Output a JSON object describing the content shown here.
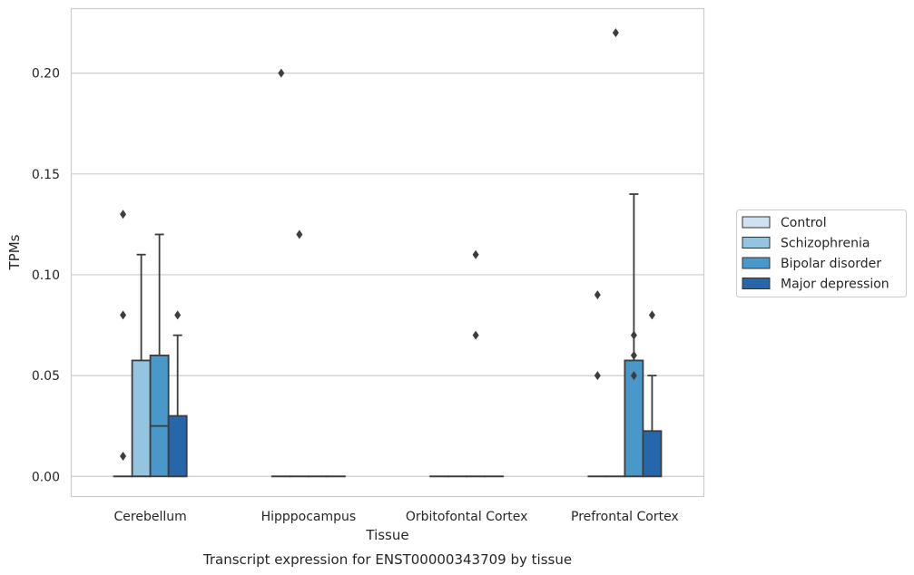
{
  "chart_data": {
    "type": "box",
    "title": "",
    "caption": "Transcript expression for ENST00000343709 by tissue",
    "xlabel": "Tissue",
    "ylabel": "TPMs",
    "ylim": [
      -0.01,
      0.232
    ],
    "yticks": [
      "0.00",
      "0.05",
      "0.10",
      "0.15",
      "0.20"
    ],
    "ytick_values": [
      0,
      0.05,
      0.1,
      0.15,
      0.2
    ],
    "grid": true,
    "legend_position": "right",
    "categories": [
      "Cerebellum",
      "Hipppocampus",
      "Orbitofontal Cortex",
      "Prefrontal Cortex"
    ],
    "series": [
      {
        "name": "Control",
        "color": "#d0e1f2",
        "boxes": [
          {
            "q1": 0,
            "median": 0,
            "q3": 0,
            "whisker_low": 0,
            "whisker_high": 0,
            "outliers": [
              0.01,
              0.08,
              0.13
            ]
          },
          {
            "q1": 0,
            "median": 0,
            "q3": 0,
            "whisker_low": 0,
            "whisker_high": 0,
            "outliers": [
              0.2
            ]
          },
          {
            "q1": 0,
            "median": 0,
            "q3": 0,
            "whisker_low": 0,
            "whisker_high": 0,
            "outliers": []
          },
          {
            "q1": 0,
            "median": 0,
            "q3": 0,
            "whisker_low": 0,
            "whisker_high": 0,
            "outliers": [
              0.05,
              0.09
            ]
          }
        ]
      },
      {
        "name": "Schizophrenia",
        "color": "#94c4df",
        "boxes": [
          {
            "q1": 0,
            "median": 0,
            "q3": 0.0575,
            "whisker_low": 0,
            "whisker_high": 0.11,
            "outliers": []
          },
          {
            "q1": 0,
            "median": 0,
            "q3": 0,
            "whisker_low": 0,
            "whisker_high": 0,
            "outliers": [
              0.12
            ]
          },
          {
            "q1": 0,
            "median": 0,
            "q3": 0,
            "whisker_low": 0,
            "whisker_high": 0,
            "outliers": []
          },
          {
            "q1": 0,
            "median": 0,
            "q3": 0,
            "whisker_low": 0,
            "whisker_high": 0,
            "outliers": [
              0.22
            ]
          }
        ]
      },
      {
        "name": "Bipolar disorder",
        "color": "#4a98c9",
        "boxes": [
          {
            "q1": 0,
            "median": 0.025,
            "q3": 0.06,
            "whisker_low": 0,
            "whisker_high": 0.12,
            "outliers": []
          },
          {
            "q1": 0,
            "median": 0,
            "q3": 0,
            "whisker_low": 0,
            "whisker_high": 0,
            "outliers": []
          },
          {
            "q1": 0,
            "median": 0,
            "q3": 0,
            "whisker_low": 0,
            "whisker_high": 0,
            "outliers": [
              0.07,
              0.11
            ]
          },
          {
            "q1": 0,
            "median": 0,
            "q3": 0.0575,
            "whisker_low": 0,
            "whisker_high": 0.14,
            "outliers": [
              0.05,
              0.06,
              0.07
            ]
          }
        ]
      },
      {
        "name": "Major depression",
        "color": "#2666ab",
        "boxes": [
          {
            "q1": 0,
            "median": 0,
            "q3": 0.03,
            "whisker_low": 0,
            "whisker_high": 0.07,
            "outliers": [
              0.08
            ]
          },
          {
            "q1": 0,
            "median": 0,
            "q3": 0,
            "whisker_low": 0,
            "whisker_high": 0,
            "outliers": []
          },
          {
            "q1": 0,
            "median": 0,
            "q3": 0,
            "whisker_low": 0,
            "whisker_high": 0,
            "outliers": []
          },
          {
            "q1": 0,
            "median": 0,
            "q3": 0.0225,
            "whisker_low": 0,
            "whisker_high": 0.05,
            "outliers": [
              0.08
            ]
          }
        ]
      }
    ]
  }
}
